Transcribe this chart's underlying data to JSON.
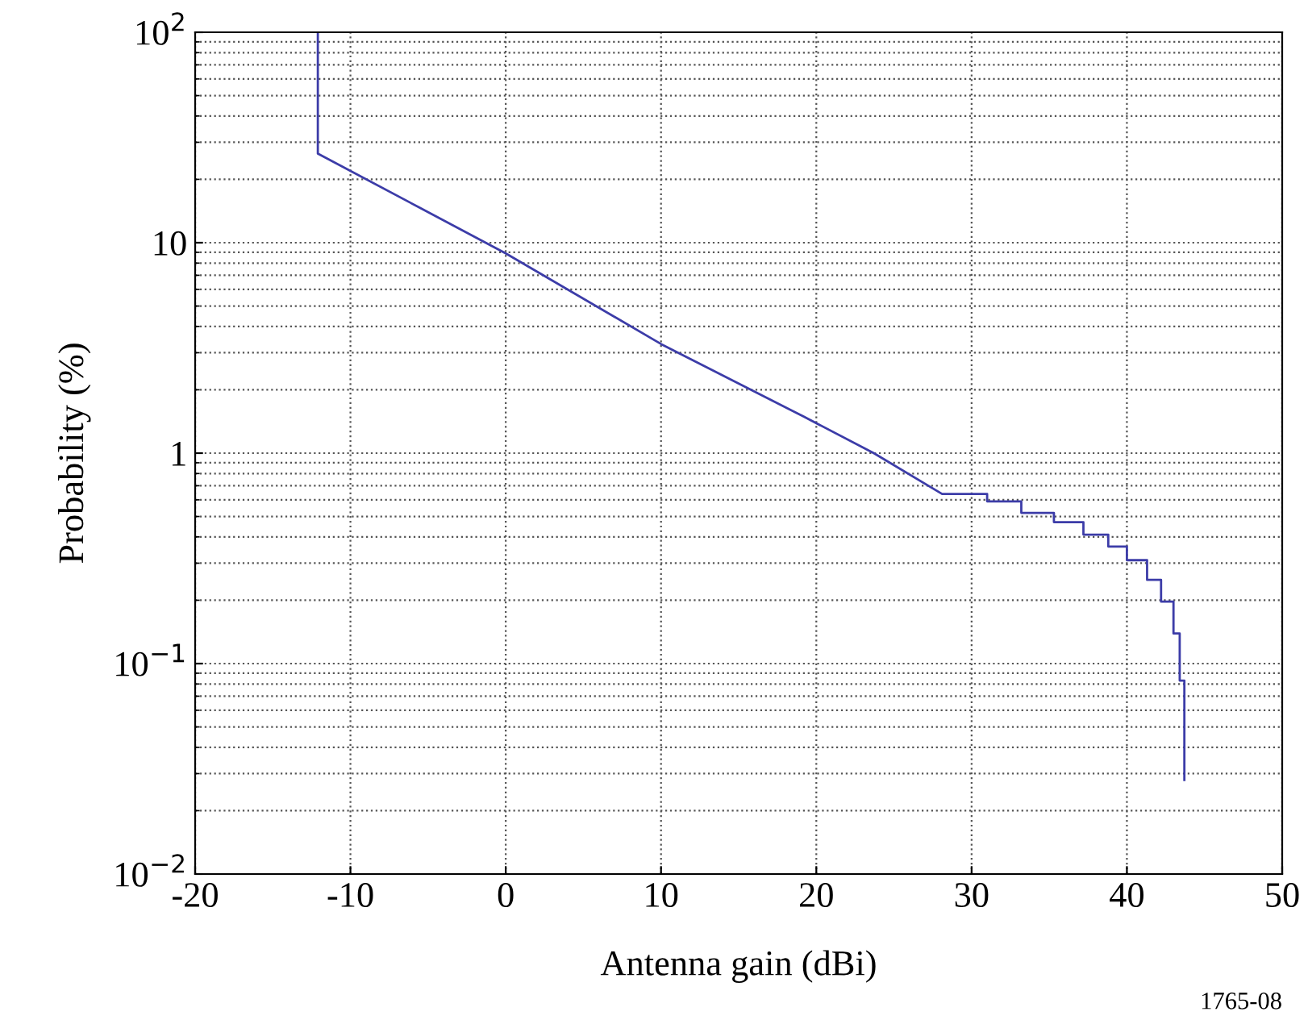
{
  "chart_data": {
    "type": "line",
    "xlabel": "Antenna gain (dBi)",
    "ylabel": "Probability (%)",
    "x": [
      -12.1,
      -12.1,
      0,
      10,
      19.2,
      23.7,
      28.1,
      31.0,
      31.0,
      33.2,
      33.2,
      35.3,
      35.3,
      37.2,
      37.2,
      38.8,
      38.8,
      40,
      40,
      41.3,
      41.3,
      42.2,
      42.2,
      43.0,
      43.0,
      43.4,
      43.4,
      43.7,
      43.7
    ],
    "series": [
      {
        "color": "#3c3ca8",
        "values": [
          100,
          26.5,
          8.9,
          3.3,
          1.49,
          1.0,
          0.64,
          0.64,
          0.59,
          0.59,
          0.52,
          0.52,
          0.47,
          0.47,
          0.41,
          0.41,
          0.36,
          0.36,
          0.31,
          0.31,
          0.25,
          0.25,
          0.197,
          0.197,
          0.139,
          0.139,
          0.083,
          0.083,
          0.028
        ]
      }
    ],
    "log": "y",
    "xlim": [
      -20,
      50
    ],
    "xticks": [
      -20,
      -10,
      0,
      10,
      20,
      30,
      40,
      50
    ],
    "ylim": [
      0.01,
      100
    ],
    "yticks": [
      {
        "value": 0.01,
        "label": "10$^{−2}$"
      },
      {
        "value": 0.1,
        "label": "10$^{−1}$"
      },
      1,
      10,
      {
        "value": 100,
        "label": "10$^{2}$"
      }
    ],
    "grid": true,
    "line_style": "solid",
    "marker": "none",
    "annotations": [
      "1765-08"
    ]
  }
}
